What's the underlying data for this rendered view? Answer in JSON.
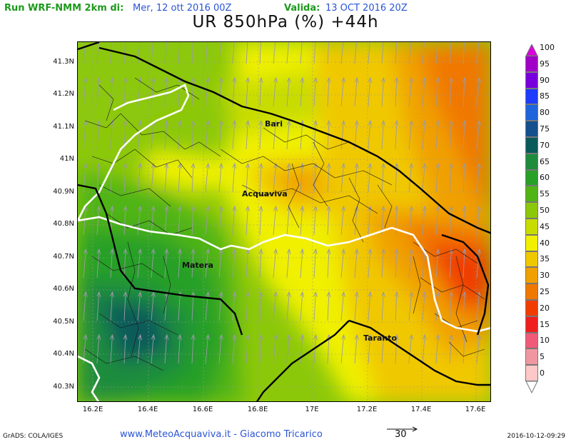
{
  "header": {
    "run_label": "Run WRF-NMM 2km di:",
    "run_date": "Mer, 12 ott 2016 00Z",
    "valid_label": "Valida:",
    "valid_date": "13 OCT 2016 20Z",
    "title": "UR 850hPa (%) +44h"
  },
  "axes": {
    "lat_labels": [
      "41.3N",
      "41.2N",
      "41.1N",
      "41N",
      "40.9N",
      "40.8N",
      "40.7N",
      "40.6N",
      "40.5N",
      "40.4N",
      "40.3N"
    ],
    "lon_labels": [
      "16.2E",
      "16.4E",
      "16.6E",
      "16.8E",
      "17E",
      "17.2E",
      "17.4E",
      "17.6E"
    ]
  },
  "cities": {
    "bari": "Bari",
    "acquaviva": "Acquaviva",
    "matera": "Matera",
    "taranto": "Taranto"
  },
  "legend": {
    "levels": [
      "100",
      "95",
      "90",
      "85",
      "80",
      "75",
      "70",
      "65",
      "60",
      "55",
      "50",
      "45",
      "40",
      "35",
      "30",
      "25",
      "20",
      "15",
      "10",
      "5",
      "0"
    ],
    "colors": {
      "95": "#a000c8",
      "90": "#7800dc",
      "85": "#1e3cff",
      "80": "#1e64dc",
      "75": "#14508c",
      "70": "#0a5a5a",
      "65": "#1e8c3c",
      "60": "#28a028",
      "55": "#50b414",
      "50": "#8cc80a",
      "45": "#c8dc00",
      "40": "#f0f000",
      "35": "#f0c800",
      "30": "#f0a000",
      "25": "#f07800",
      "20": "#f03c00",
      "15": "#f01e1e",
      "10": "#f05a78",
      "5": "#f096a0",
      "0": "#ffc8c8"
    },
    "top_color": "#dc00dc",
    "bottom_color": "#ffffff"
  },
  "footer": {
    "grads": "GrADS: COLA/IGES",
    "credit": "www.MeteoAcquaviva.it - Giacomo Tricarico",
    "reference_vector": "30",
    "timestamp": "2016-10-12-09:29"
  }
}
